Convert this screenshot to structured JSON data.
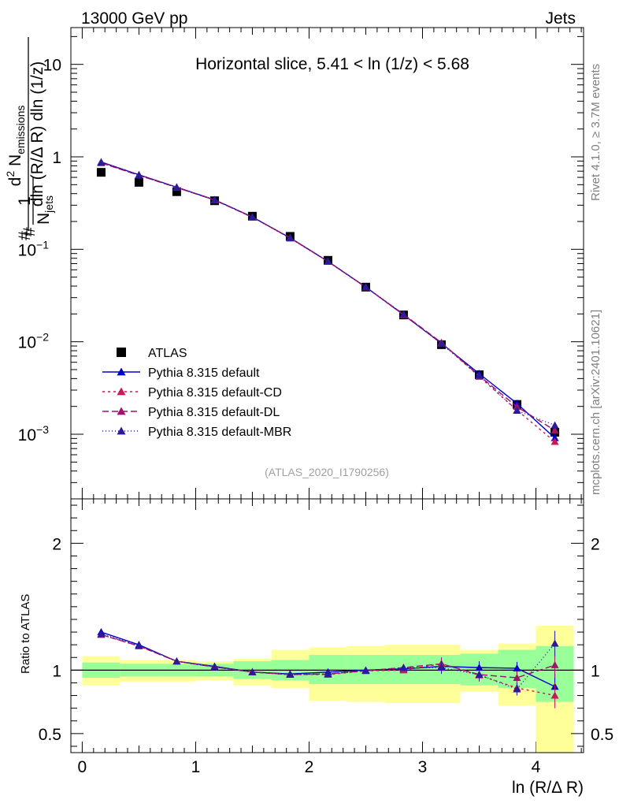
{
  "header": {
    "process": "13000 GeV pp",
    "category": "Jets",
    "watermark": "(ATLAS_2020_I1790256)",
    "side_top": "Rivet 4.1.0, ≥ 3.7M events",
    "side_bottom": "mcplots.cern.ch [arXiv:2401.10621]"
  },
  "chart_data": [
    {
      "type": "scatter",
      "panel": "main",
      "title": "Horizontal slice, 5.41 < ln (1/z) < 5.68",
      "xlabel": "ln (R/Δ R)",
      "ylabel": "1/N_jets d²N_emissions / dln(R/ΔR) dln(1/z)",
      "yscale": "log",
      "xlim": [
        -0.1,
        4.42
      ],
      "ylim": [
        0.0002,
        25
      ],
      "yticks": [
        {
          "value": 0.001,
          "label": "10",
          "exp": "−3"
        },
        {
          "value": 0.01,
          "label": "10",
          "exp": "−2"
        },
        {
          "value": 0.1,
          "label": "10",
          "exp": "−1"
        },
        {
          "value": 1,
          "label": "1",
          "exp": ""
        },
        {
          "value": 10,
          "label": "10",
          "exp": ""
        }
      ],
      "x": [
        0.167,
        0.5,
        0.833,
        1.167,
        1.5,
        1.833,
        2.167,
        2.5,
        2.833,
        3.167,
        3.5,
        3.833,
        4.167
      ],
      "series": [
        {
          "name": "ATLAS",
          "color": "#000000",
          "marker": "square",
          "dash": "none",
          "values": [
            0.68,
            0.53,
            0.42,
            0.335,
            0.228,
            0.138,
            0.076,
            0.039,
            0.0195,
            0.0093,
            0.0044,
            0.0021,
            0.00105
          ]
        },
        {
          "name": "Pythia 8.315 default",
          "color": "#0000cc",
          "marker": "triangle",
          "dash": "none",
          "values": [
            0.88,
            0.64,
            0.47,
            0.343,
            0.224,
            0.133,
            0.074,
            0.0391,
            0.0196,
            0.0096,
            0.00452,
            0.00215,
            0.00091
          ]
        },
        {
          "name": "Pythia 8.315 default-CD",
          "color": "#c8185a",
          "marker": "triangle",
          "dash": "3,4",
          "values": [
            0.87,
            0.635,
            0.468,
            0.341,
            0.223,
            0.132,
            0.0735,
            0.0388,
            0.0195,
            0.0097,
            0.0042,
            0.00182,
            0.00083
          ]
        },
        {
          "name": "Pythia 8.315 default-DL",
          "color": "#a0126b",
          "marker": "triangle",
          "dash": "8,4",
          "values": [
            0.86,
            0.63,
            0.466,
            0.341,
            0.222,
            0.133,
            0.0738,
            0.0389,
            0.0198,
            0.0098,
            0.0043,
            0.00198,
            0.0011
          ]
        },
        {
          "name": "Pythia 8.315 default-MBR",
          "color": "#2a1a9c",
          "marker": "triangle",
          "dash": "1,3",
          "values": [
            0.865,
            0.632,
            0.467,
            0.342,
            0.223,
            0.132,
            0.0737,
            0.039,
            0.0199,
            0.0095,
            0.0043,
            0.0018,
            0.00125
          ]
        }
      ]
    },
    {
      "type": "scatter",
      "panel": "ratio",
      "ylabel": "Ratio to ATLAS",
      "xlabel": "ln (R/Δ R)",
      "ylim": [
        0.35,
        2.35
      ],
      "xlim": [
        -0.1,
        4.42
      ],
      "xticks": [
        0,
        1,
        2,
        3,
        4
      ],
      "yticks": [
        0.5,
        1,
        2
      ],
      "x": [
        0.167,
        0.5,
        0.833,
        1.167,
        1.5,
        1.833,
        2.167,
        2.5,
        2.833,
        3.167,
        3.5,
        3.833,
        4.167
      ],
      "bins": [
        0,
        0.333,
        0.667,
        1.0,
        1.333,
        1.667,
        2.0,
        2.333,
        2.667,
        3.0,
        3.333,
        3.667,
        4.0,
        4.333
      ],
      "band_green": [
        [
          0.94,
          1.06
        ],
        [
          0.95,
          1.05
        ],
        [
          0.95,
          1.05
        ],
        [
          0.95,
          1.05
        ],
        [
          0.93,
          1.07
        ],
        [
          0.92,
          1.08
        ],
        [
          0.89,
          1.12
        ],
        [
          0.89,
          1.12
        ],
        [
          0.89,
          1.12
        ],
        [
          0.89,
          1.12
        ],
        [
          0.88,
          1.13
        ],
        [
          0.86,
          1.16
        ],
        [
          0.75,
          1.19
        ]
      ],
      "band_yellow": [
        [
          0.88,
          1.11
        ],
        [
          0.91,
          1.08
        ],
        [
          0.91,
          1.08
        ],
        [
          0.92,
          1.07
        ],
        [
          0.88,
          1.09
        ],
        [
          0.86,
          1.16
        ],
        [
          0.76,
          1.18
        ],
        [
          0.75,
          1.19
        ],
        [
          0.74,
          1.2
        ],
        [
          0.74,
          1.2
        ],
        [
          0.83,
          1.16
        ],
        [
          0.72,
          1.21
        ],
        [
          0.35,
          1.35
        ]
      ],
      "series": [
        {
          "name": "Pythia 8.315 default",
          "color": "#0000cc",
          "marker": "triangle",
          "dash": "none",
          "values": [
            1.3,
            1.2,
            1.07,
            1.03,
            0.985,
            0.97,
            0.985,
            1.0,
            1.01,
            1.03,
            1.02,
            1.015,
            0.87
          ]
        },
        {
          "name": "Pythia 8.315 default-CD",
          "color": "#c8185a",
          "marker": "triangle",
          "dash": "3,4",
          "values": [
            1.28,
            1.19,
            1.07,
            1.025,
            0.985,
            0.965,
            0.965,
            0.995,
            1.0,
            1.05,
            0.96,
            0.86,
            0.8
          ]
        },
        {
          "name": "Pythia 8.315 default-DL",
          "color": "#a0126b",
          "marker": "triangle",
          "dash": "8,4",
          "values": [
            1.28,
            1.19,
            1.07,
            1.025,
            0.985,
            0.965,
            0.97,
            0.995,
            1.02,
            1.05,
            0.965,
            0.94,
            1.04
          ]
        },
        {
          "name": "Pythia 8.315 default-MBR",
          "color": "#2a1a9c",
          "marker": "triangle",
          "dash": "1,3",
          "values": [
            1.285,
            1.195,
            1.07,
            1.025,
            0.985,
            0.965,
            0.97,
            0.995,
            1.02,
            1.02,
            0.965,
            0.85,
            1.21
          ]
        }
      ]
    }
  ]
}
